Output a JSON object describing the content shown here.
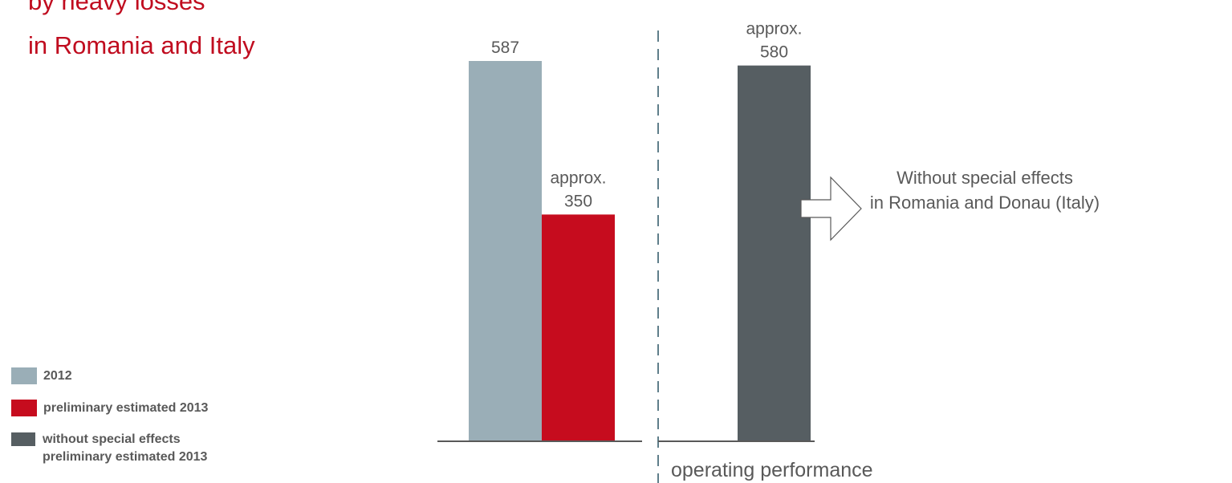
{
  "headline": {
    "line1": "by heavy losses",
    "line2": "in Romania and Italy",
    "color": "#c00c1f"
  },
  "annotation": {
    "line1": "Without special effects",
    "line2": "in Romania and Donau (Italy)"
  },
  "section_label": "operating performance",
  "legend": [
    {
      "label_lines": [
        "2012"
      ],
      "color": "#9aaeb7"
    },
    {
      "label_lines": [
        "preliminary estimated 2013"
      ],
      "color": "#c60c1e"
    },
    {
      "label_lines": [
        "without special effects",
        "preliminary estimated 2013"
      ],
      "color": "#565e62"
    }
  ],
  "chart_data": {
    "type": "bar",
    "categories": [
      "2012",
      "preliminary estimated 2013",
      "without special effects preliminary estimated 2013"
    ],
    "values": [
      587,
      350,
      580
    ],
    "data_labels": [
      [
        "587"
      ],
      [
        "approx.",
        "350"
      ],
      [
        "approx.",
        "580"
      ]
    ],
    "colors": [
      "#9aaeb7",
      "#c60c1e",
      "#565e62"
    ],
    "ylim": [
      0,
      587
    ],
    "grid": false,
    "xlabel": "",
    "ylabel": ""
  }
}
